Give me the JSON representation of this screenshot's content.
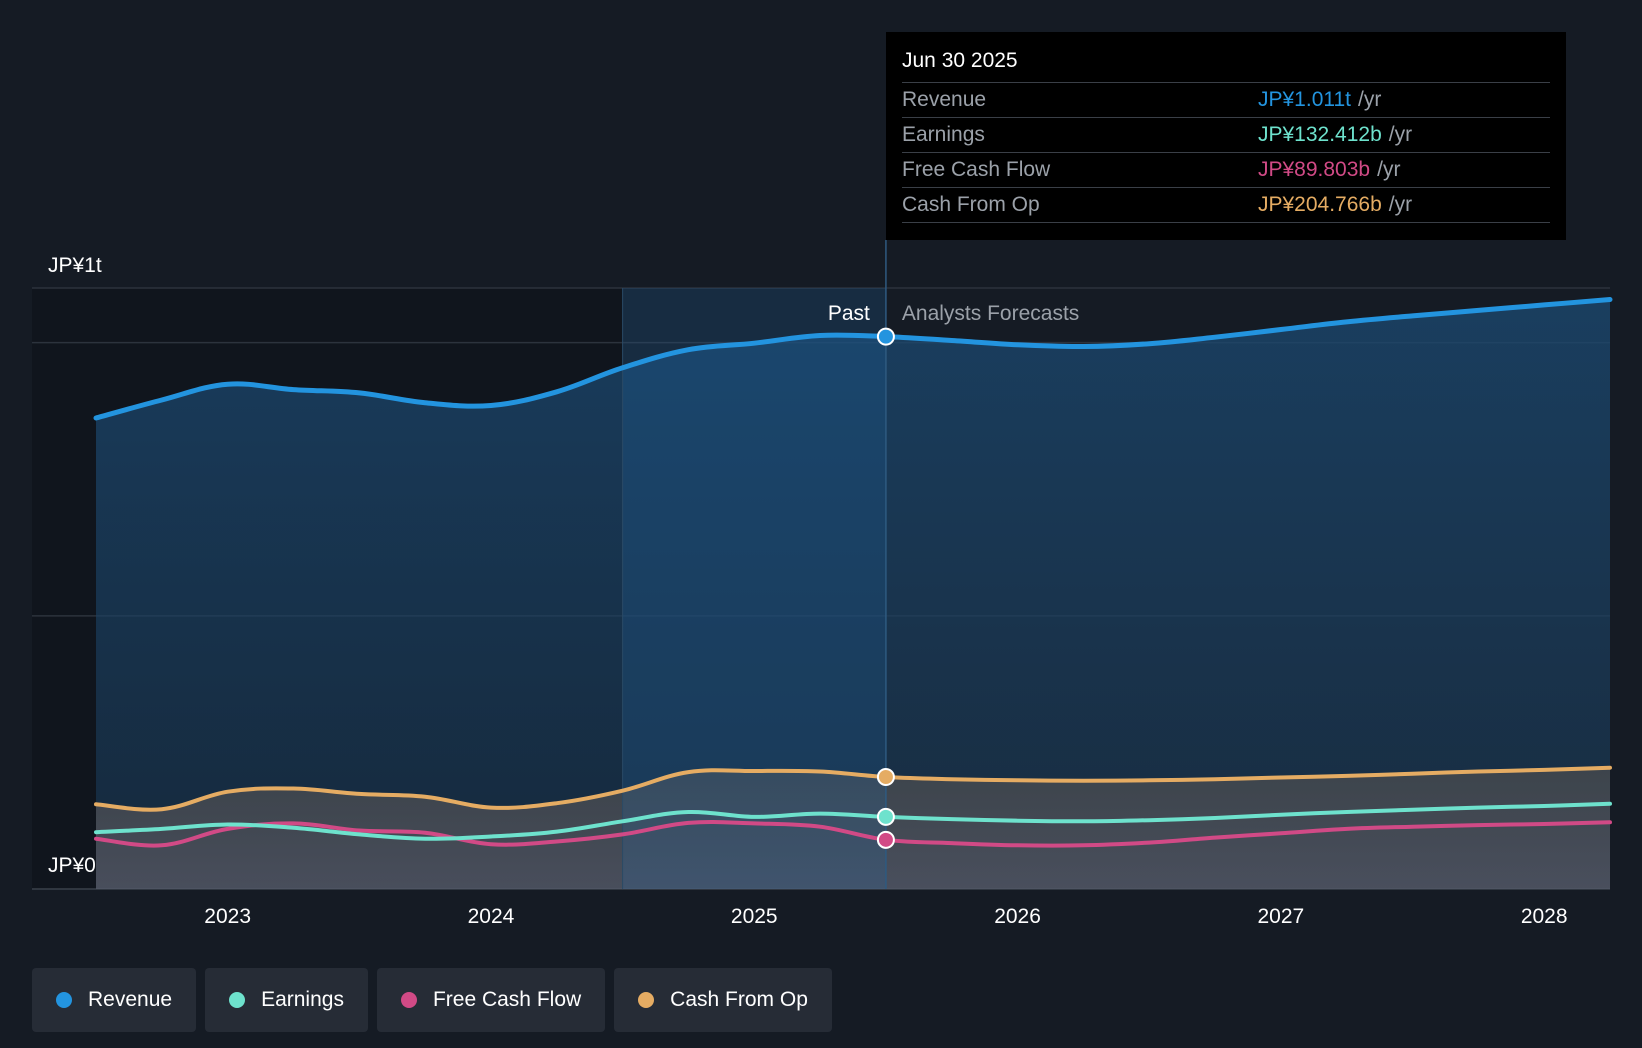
{
  "colors": {
    "background": "#151b24",
    "revenue": "#2394df",
    "earnings": "#6ee2cd",
    "fcf": "#d14a86",
    "cfo": "#e5ac63",
    "grid": "#2c333d",
    "axis_text": "#ffffff",
    "muted_text": "#9ba1a9"
  },
  "tooltip": {
    "date": "Jun 30 2025",
    "rows": [
      {
        "label": "Revenue",
        "value": "JP¥1.011t",
        "unit": "/yr",
        "color": "#2394df"
      },
      {
        "label": "Earnings",
        "value": "JP¥132.412b",
        "unit": "/yr",
        "color": "#6ee2cd"
      },
      {
        "label": "Free Cash Flow",
        "value": "JP¥89.803b",
        "unit": "/yr",
        "color": "#d14a86"
      },
      {
        "label": "Cash From Op",
        "value": "JP¥204.766b",
        "unit": "/yr",
        "color": "#e5ac63"
      }
    ]
  },
  "legend": [
    {
      "label": "Revenue",
      "color": "#2394df"
    },
    {
      "label": "Earnings",
      "color": "#6ee2cd"
    },
    {
      "label": "Free Cash Flow",
      "color": "#d14a86"
    },
    {
      "label": "Cash From Op",
      "color": "#e5ac63"
    }
  ],
  "chart_data": {
    "type": "area",
    "title": "",
    "xlabel": "",
    "ylabel": "",
    "y_label_top": "JP¥1t",
    "y_label_bottom": "JP¥0",
    "ylim": [
      0,
      1.1
    ],
    "y_units": "JP¥ trillion",
    "xlim": [
      2022.5,
      2028.25
    ],
    "x_ticks": [
      2023,
      2024,
      2025,
      2026,
      2027,
      2028
    ],
    "x_tick_labels": [
      "2023",
      "2024",
      "2025",
      "2026",
      "2027",
      "2028"
    ],
    "gridlines_y": [
      0.5,
      1.0,
      1.1
    ],
    "past_label": "Past",
    "forecast_label": "Analysts Forecasts",
    "past_end_x": 2025.5,
    "highlight_start_x": 2024.5,
    "highlight_marker_x": 2025.5,
    "series": [
      {
        "name": "Revenue",
        "key": "revenue",
        "x": [
          2022.5,
          2022.75,
          2023.0,
          2023.25,
          2023.5,
          2023.75,
          2024.0,
          2024.25,
          2024.5,
          2024.75,
          2025.0,
          2025.25,
          2025.5,
          2025.75,
          2026.0,
          2026.25,
          2026.5,
          2026.75,
          2027.0,
          2027.25,
          2027.5,
          2027.75,
          2028.0,
          2028.25
        ],
        "values": [
          0.862,
          0.895,
          0.924,
          0.914,
          0.908,
          0.89,
          0.885,
          0.91,
          0.954,
          0.987,
          0.999,
          1.013,
          1.011,
          1.004,
          0.996,
          0.993,
          0.998,
          1.01,
          1.024,
          1.038,
          1.049,
          1.059,
          1.069,
          1.079
        ]
      },
      {
        "name": "Earnings",
        "key": "earnings",
        "x": [
          2022.5,
          2022.75,
          2023.0,
          2023.25,
          2023.5,
          2023.75,
          2024.0,
          2024.25,
          2024.5,
          2024.75,
          2025.0,
          2025.25,
          2025.5,
          2025.75,
          2026.0,
          2026.25,
          2026.5,
          2026.75,
          2027.0,
          2027.25,
          2027.5,
          2027.75,
          2028.0,
          2028.25
        ],
        "values": [
          0.104,
          0.11,
          0.118,
          0.112,
          0.1,
          0.092,
          0.096,
          0.105,
          0.124,
          0.141,
          0.132,
          0.138,
          0.132,
          0.128,
          0.125,
          0.124,
          0.126,
          0.13,
          0.136,
          0.141,
          0.145,
          0.149,
          0.152,
          0.156
        ]
      },
      {
        "name": "Free Cash Flow",
        "key": "fcf",
        "x": [
          2022.5,
          2022.75,
          2023.0,
          2023.25,
          2023.5,
          2023.75,
          2024.0,
          2024.25,
          2024.5,
          2024.75,
          2025.0,
          2025.25,
          2025.5,
          2025.75,
          2026.0,
          2026.25,
          2026.5,
          2026.75,
          2027.0,
          2027.25,
          2027.5,
          2027.75,
          2028.0,
          2028.25
        ],
        "values": [
          0.092,
          0.08,
          0.11,
          0.12,
          0.107,
          0.103,
          0.082,
          0.087,
          0.1,
          0.121,
          0.12,
          0.114,
          0.09,
          0.084,
          0.08,
          0.08,
          0.085,
          0.094,
          0.102,
          0.11,
          0.114,
          0.117,
          0.119,
          0.122
        ]
      },
      {
        "name": "Cash From Op",
        "key": "cfo",
        "x": [
          2022.5,
          2022.75,
          2023.0,
          2023.25,
          2023.5,
          2023.75,
          2024.0,
          2024.25,
          2024.5,
          2024.75,
          2025.0,
          2025.25,
          2025.5,
          2025.75,
          2026.0,
          2026.25,
          2026.5,
          2026.75,
          2027.0,
          2027.25,
          2027.5,
          2027.75,
          2028.0,
          2028.25
        ],
        "values": [
          0.155,
          0.146,
          0.178,
          0.184,
          0.174,
          0.169,
          0.149,
          0.157,
          0.18,
          0.214,
          0.216,
          0.215,
          0.205,
          0.201,
          0.199,
          0.198,
          0.199,
          0.201,
          0.204,
          0.207,
          0.211,
          0.215,
          0.218,
          0.222
        ]
      }
    ]
  }
}
